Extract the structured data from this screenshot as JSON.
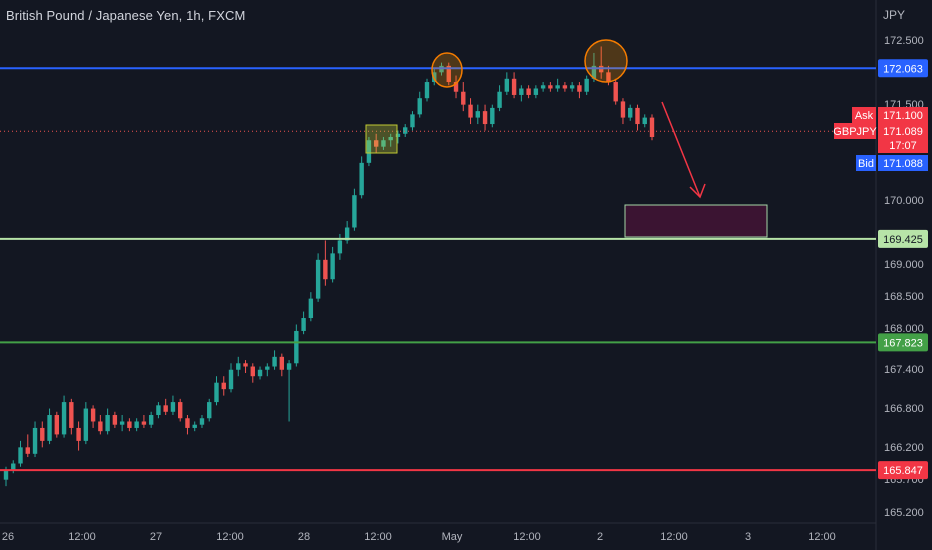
{
  "header": {
    "title": "British Pound / Japanese Yen, 1h, FXCM",
    "currency": "JPY"
  },
  "price_scale": {
    "ticks": [
      "172.500",
      "171.500",
      "170.000",
      "169.000",
      "168.500",
      "168.000",
      "167.400",
      "166.800",
      "166.200",
      "165.700",
      "165.200"
    ]
  },
  "time_axis": {
    "labels": [
      "26",
      "12:00",
      "27",
      "12:00",
      "28",
      "12:00",
      "May",
      "12:00",
      "2",
      "12:00",
      "3",
      "12:00"
    ]
  },
  "levels": [
    {
      "name": "resistance",
      "label": "172.063",
      "color": "#2962ff"
    },
    {
      "name": "support-1",
      "label": "169.425",
      "color": "#b7e4a8"
    },
    {
      "name": "support-2",
      "label": "167.823",
      "color": "#43a047"
    },
    {
      "name": "support-3",
      "label": "165.847",
      "color": "#f23645"
    }
  ],
  "quote": {
    "ask_label": "Ask",
    "ask_value": "171.100",
    "symbol": "GBPJPY",
    "last": "171.089",
    "countdown": "17:07",
    "bid_label": "Bid",
    "bid_value": "171.088"
  },
  "colors": {
    "up": "#26a69a",
    "down": "#ef5350",
    "background": "#131722",
    "axis_text": "#b2b5be"
  },
  "chart_data": {
    "type": "candlestick",
    "symbol": "GBPJPY",
    "timeframe": "1h",
    "ylim": [
      165.0,
      173.0
    ],
    "ohlc": [
      [
        165.7,
        165.9,
        165.6,
        165.85
      ],
      [
        165.85,
        166.0,
        165.8,
        165.95
      ],
      [
        165.95,
        166.3,
        165.9,
        166.2
      ],
      [
        166.2,
        166.4,
        166.05,
        166.1
      ],
      [
        166.1,
        166.6,
        166.05,
        166.5
      ],
      [
        166.5,
        166.6,
        166.2,
        166.3
      ],
      [
        166.3,
        166.8,
        166.25,
        166.7
      ],
      [
        166.7,
        166.75,
        166.35,
        166.4
      ],
      [
        166.4,
        167.0,
        166.35,
        166.9
      ],
      [
        166.9,
        166.95,
        166.4,
        166.5
      ],
      [
        166.5,
        166.6,
        166.15,
        166.3
      ],
      [
        166.3,
        166.9,
        166.25,
        166.8
      ],
      [
        166.8,
        166.85,
        166.5,
        166.6
      ],
      [
        166.6,
        166.7,
        166.4,
        166.45
      ],
      [
        166.45,
        166.8,
        166.4,
        166.7
      ],
      [
        166.7,
        166.75,
        166.5,
        166.55
      ],
      [
        166.55,
        166.7,
        166.45,
        166.6
      ],
      [
        166.6,
        166.65,
        166.45,
        166.5
      ],
      [
        166.5,
        166.65,
        166.45,
        166.6
      ],
      [
        166.6,
        166.7,
        166.5,
        166.55
      ],
      [
        166.55,
        166.75,
        166.5,
        166.7
      ],
      [
        166.7,
        166.9,
        166.65,
        166.85
      ],
      [
        166.85,
        166.95,
        166.7,
        166.75
      ],
      [
        166.75,
        167.0,
        166.7,
        166.9
      ],
      [
        166.9,
        166.95,
        166.6,
        166.65
      ],
      [
        166.65,
        166.7,
        166.4,
        166.5
      ],
      [
        166.5,
        166.6,
        166.45,
        166.55
      ],
      [
        166.55,
        166.7,
        166.5,
        166.65
      ],
      [
        166.65,
        166.95,
        166.6,
        166.9
      ],
      [
        166.9,
        167.3,
        166.85,
        167.2
      ],
      [
        167.2,
        167.3,
        167.0,
        167.1
      ],
      [
        167.1,
        167.5,
        167.05,
        167.4
      ],
      [
        167.4,
        167.6,
        167.3,
        167.5
      ],
      [
        167.5,
        167.55,
        167.35,
        167.45
      ],
      [
        167.45,
        167.5,
        167.2,
        167.3
      ],
      [
        167.3,
        167.45,
        167.25,
        167.4
      ],
      [
        167.4,
        167.5,
        167.3,
        167.45
      ],
      [
        167.45,
        167.7,
        167.4,
        167.6
      ],
      [
        167.6,
        167.65,
        167.3,
        167.4
      ],
      [
        167.4,
        167.55,
        166.6,
        167.5
      ],
      [
        167.5,
        168.1,
        167.45,
        168.0
      ],
      [
        168.0,
        168.3,
        167.95,
        168.2
      ],
      [
        168.2,
        168.6,
        168.15,
        168.5
      ],
      [
        168.5,
        169.2,
        168.45,
        169.1
      ],
      [
        169.1,
        169.4,
        168.7,
        168.8
      ],
      [
        168.8,
        169.3,
        168.75,
        169.2
      ],
      [
        169.2,
        169.5,
        169.1,
        169.4
      ],
      [
        169.4,
        169.7,
        169.35,
        169.6
      ],
      [
        169.6,
        170.2,
        169.55,
        170.1
      ],
      [
        170.1,
        170.7,
        170.05,
        170.6
      ],
      [
        170.6,
        171.0,
        170.55,
        170.95
      ],
      [
        170.95,
        171.05,
        170.75,
        170.85
      ],
      [
        170.85,
        171.0,
        170.8,
        170.95
      ],
      [
        170.95,
        171.05,
        170.85,
        171.0
      ],
      [
        171.0,
        171.1,
        170.9,
        171.05
      ],
      [
        171.05,
        171.2,
        171.0,
        171.15
      ],
      [
        171.15,
        171.4,
        171.1,
        171.35
      ],
      [
        171.35,
        171.7,
        171.3,
        171.6
      ],
      [
        171.6,
        171.9,
        171.55,
        171.85
      ],
      [
        171.85,
        172.05,
        171.8,
        172.0
      ],
      [
        172.0,
        172.15,
        171.95,
        172.1
      ],
      [
        172.1,
        172.15,
        171.8,
        171.85
      ],
      [
        171.85,
        171.95,
        171.6,
        171.7
      ],
      [
        171.7,
        171.85,
        171.4,
        171.5
      ],
      [
        171.5,
        171.6,
        171.2,
        171.3
      ],
      [
        171.3,
        171.5,
        171.2,
        171.4
      ],
      [
        171.4,
        171.5,
        171.1,
        171.2
      ],
      [
        171.2,
        171.5,
        171.15,
        171.45
      ],
      [
        171.45,
        171.8,
        171.4,
        171.7
      ],
      [
        171.7,
        172.0,
        171.65,
        171.9
      ],
      [
        171.9,
        172.0,
        171.6,
        171.65
      ],
      [
        171.65,
        171.8,
        171.55,
        171.75
      ],
      [
        171.75,
        171.8,
        171.6,
        171.65
      ],
      [
        171.65,
        171.8,
        171.6,
        171.75
      ],
      [
        171.75,
        171.85,
        171.7,
        171.8
      ],
      [
        171.8,
        171.85,
        171.7,
        171.75
      ],
      [
        171.75,
        171.9,
        171.7,
        171.8
      ],
      [
        171.8,
        171.85,
        171.7,
        171.75
      ],
      [
        171.75,
        171.85,
        171.7,
        171.8
      ],
      [
        171.8,
        171.85,
        171.6,
        171.7
      ],
      [
        171.7,
        171.95,
        171.65,
        171.9
      ],
      [
        171.9,
        172.3,
        171.85,
        172.1
      ],
      [
        172.1,
        172.4,
        171.9,
        172.0
      ],
      [
        172.0,
        172.1,
        171.8,
        171.85
      ],
      [
        171.85,
        171.9,
        171.5,
        171.55
      ],
      [
        171.55,
        171.6,
        171.2,
        171.3
      ],
      [
        171.3,
        171.5,
        171.25,
        171.45
      ],
      [
        171.45,
        171.5,
        171.1,
        171.2
      ],
      [
        171.2,
        171.35,
        171.15,
        171.3
      ],
      [
        171.3,
        171.35,
        170.95,
        171.0
      ]
    ]
  }
}
